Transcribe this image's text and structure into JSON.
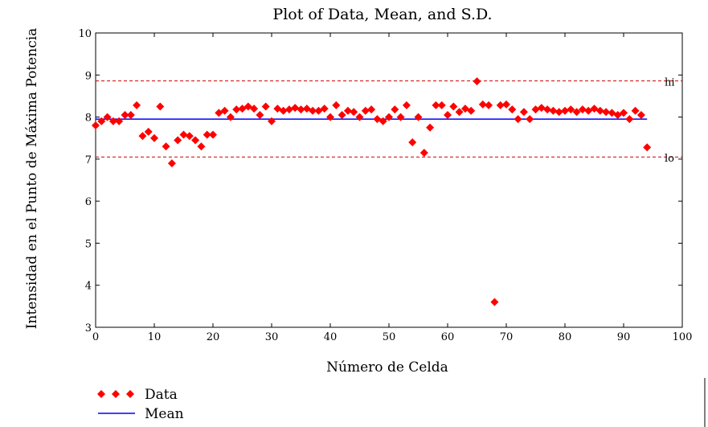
{
  "chart_data": {
    "type": "scatter",
    "title": "Plot of Data, Mean, and S.D.",
    "xlabel": "Número de Celda",
    "ylabel": "Intensidad en el Punto de Máxima Potencia",
    "xlim": [
      0,
      100
    ],
    "ylim": [
      3,
      10
    ],
    "xticks": [
      "0",
      "10",
      "20",
      "30",
      "40",
      "50",
      "60",
      "70",
      "80",
      "90",
      "100"
    ],
    "yticks": [
      "3",
      "4",
      "5",
      "6",
      "7",
      "8",
      "9",
      "10"
    ],
    "grid": false,
    "legend_position": "bottom-left",
    "series": [
      {
        "name": "Data",
        "color": "#ff0000",
        "marker": "diamond",
        "x": [
          0,
          1,
          2,
          3,
          4,
          5,
          6,
          7,
          8,
          9,
          10,
          11,
          12,
          13,
          14,
          15,
          16,
          17,
          18,
          19,
          20,
          21,
          22,
          23,
          24,
          25,
          26,
          27,
          28,
          29,
          30,
          31,
          32,
          33,
          34,
          35,
          36,
          37,
          38,
          39,
          40,
          41,
          42,
          43,
          44,
          45,
          46,
          47,
          48,
          49,
          50,
          51,
          52,
          53,
          54,
          55,
          56,
          57,
          58,
          59,
          60,
          61,
          62,
          63,
          64,
          65,
          66,
          67,
          68,
          69,
          70,
          71,
          72,
          73,
          74,
          75,
          76,
          77,
          78,
          79,
          80,
          81,
          82,
          83,
          84,
          85,
          86,
          87,
          88,
          89,
          90,
          91,
          92,
          93,
          94
        ],
        "y": [
          7.8,
          7.9,
          8.0,
          7.9,
          7.9,
          8.05,
          8.05,
          8.28,
          7.55,
          7.65,
          7.5,
          8.25,
          7.3,
          6.9,
          7.45,
          7.58,
          7.55,
          7.45,
          7.3,
          7.58,
          7.58,
          8.1,
          8.15,
          8.0,
          8.18,
          8.2,
          8.25,
          8.2,
          8.05,
          8.25,
          7.9,
          8.2,
          8.15,
          8.18,
          8.22,
          8.18,
          8.2,
          8.15,
          8.15,
          8.2,
          8.0,
          8.28,
          8.05,
          8.15,
          8.12,
          8.0,
          8.15,
          8.18,
          7.95,
          7.9,
          8.0,
          8.18,
          8.0,
          8.28,
          7.4,
          8.0,
          7.15,
          7.75,
          8.28,
          8.28,
          8.05,
          8.25,
          8.12,
          8.2,
          8.15,
          8.85,
          8.3,
          8.28,
          3.6,
          8.28,
          8.3,
          8.18,
          7.95,
          8.12,
          7.95,
          8.18,
          8.22,
          8.18,
          8.15,
          8.12,
          8.15,
          8.18,
          8.12,
          8.18,
          8.15,
          8.2,
          8.15,
          8.12,
          8.1,
          8.05,
          8.1,
          7.95,
          8.15,
          8.05,
          7.28
        ]
      },
      {
        "name": "Mean",
        "color": "#0000ff",
        "line": "solid",
        "x": [
          0,
          94
        ],
        "y": [
          7.95,
          7.95
        ]
      },
      {
        "color": "#cc0000",
        "line": "dashed",
        "label": "hi",
        "x": [
          0,
          100
        ],
        "y": [
          8.86,
          8.86
        ]
      },
      {
        "color": "#cc0000",
        "line": "dashed",
        "label": "lo",
        "x": [
          0,
          100
        ],
        "y": [
          7.05,
          7.05
        ]
      }
    ]
  }
}
